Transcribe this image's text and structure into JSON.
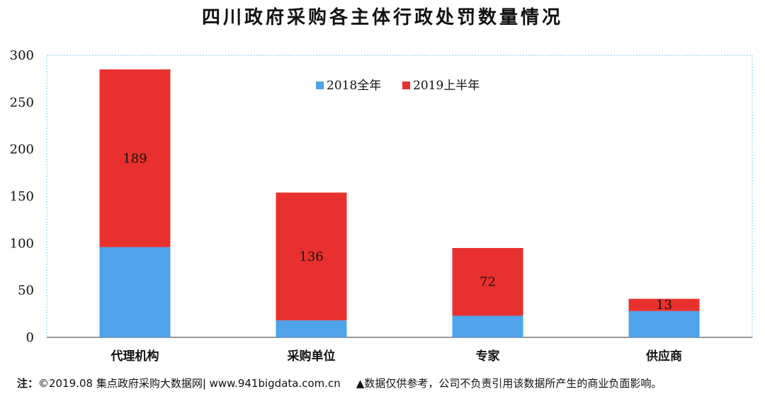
{
  "title": "四川政府采购各主体行政处罚数量情况",
  "footnote": {
    "prefix": "注：",
    "source": "©2019.08 集点政府采购大数据网| www.941bigdata.com.cn",
    "disclaimer": "▲数据仅供参考，公司不负责引用该数据所产生的商业负面影响。"
  },
  "chart_data": {
    "type": "bar",
    "stacked": true,
    "categories": [
      "代理机构",
      "采购单位",
      "专家",
      "供应商"
    ],
    "series": [
      {
        "name": "2018全年",
        "values": [
          96,
          18,
          23,
          28
        ],
        "color": "#4ea3ea",
        "show_labels": false
      },
      {
        "name": "2019上半年",
        "values": [
          189,
          136,
          72,
          13
        ],
        "color": "#e8312e",
        "show_labels": true
      }
    ],
    "ylim": [
      0,
      300
    ],
    "yticks": [
      0,
      50,
      100,
      150,
      200,
      250,
      300
    ],
    "grid": false,
    "legend": "top-center",
    "title": "四川政府采购各主体行政处罚数量情况",
    "xlabel": "",
    "ylabel": ""
  }
}
